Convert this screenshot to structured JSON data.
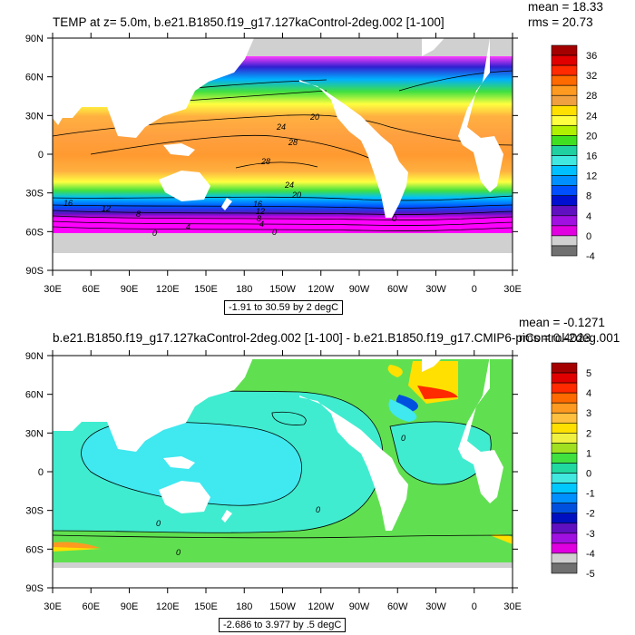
{
  "chart_data": [
    {
      "type": "heatmap",
      "title": "TEMP at z=   5.0m, b.e21.B1850.f19_g17.127kaControl-2deg.002 [1-100]",
      "stats": {
        "mean": "mean = 18.33",
        "rms": "rms = 20.73"
      },
      "range_label": "-1.91 to 30.59 by 2 degC",
      "x_ticks": [
        "30E",
        "60E",
        "90E",
        "120E",
        "150E",
        "180",
        "150W",
        "120W",
        "90W",
        "60W",
        "30W",
        "0",
        "30E"
      ],
      "y_ticks": [
        "90N",
        "60N",
        "30N",
        "0",
        "30S",
        "60S",
        "90S"
      ],
      "colorbar": {
        "labels": [
          "36",
          "32",
          "28",
          "24",
          "20",
          "16",
          "12",
          "8",
          "4",
          "0",
          "-4"
        ],
        "colors": [
          "#a50000",
          "#e00000",
          "#ff2a00",
          "#ff6a00",
          "#ff9a20",
          "#f0a040",
          "#ffe000",
          "#ffff40",
          "#b0f000",
          "#40e020",
          "#20d0a0",
          "#40e8e0",
          "#00c0ff",
          "#0090ff",
          "#0050ff",
          "#0010d0",
          "#6010c0",
          "#a010e0",
          "#e000e0",
          "#d0d0d0",
          "#707070"
        ]
      },
      "contour_labels": [
        "20",
        "24",
        "28",
        "28",
        "24",
        "20",
        "16",
        "12",
        "8",
        "4",
        "0",
        "16",
        "12",
        "8",
        "4",
        "0",
        "0"
      ]
    },
    {
      "type": "heatmap",
      "title": "b.e21.B1850.f19_g17.127kaControl-2deg.002 [1-100] - b.e21.B1850.f19_g17.CMIP6-piControl-2deg.001",
      "stats": {
        "mean": "mean = -0.1271",
        "rms": "rms = 0.4023"
      },
      "range_label": "-2.686 to 3.977 by .5 degC",
      "x_ticks": [
        "30E",
        "60E",
        "90E",
        "120E",
        "150E",
        "180",
        "150W",
        "120W",
        "90W",
        "60W",
        "30W",
        "0",
        "30E"
      ],
      "y_ticks": [
        "90N",
        "60N",
        "30N",
        "0",
        "30S",
        "60S",
        "90S"
      ],
      "colorbar": {
        "labels": [
          "5",
          "4",
          "3",
          "2",
          "1",
          "0",
          "-1",
          "-2",
          "-3",
          "-4",
          "-5"
        ],
        "colors": [
          "#a50000",
          "#e00000",
          "#ff2a00",
          "#ff6a00",
          "#ff9a20",
          "#ffc040",
          "#ffe000",
          "#f0f040",
          "#a0e020",
          "#40e040",
          "#20d8a0",
          "#40e8e0",
          "#00c8ff",
          "#0090ff",
          "#0050e0",
          "#0010c0",
          "#6010c0",
          "#a010e0",
          "#e000e0",
          "#d0d0d0",
          "#707070"
        ]
      },
      "contour_labels": [
        "0",
        "0",
        "0",
        "0",
        "0"
      ]
    }
  ]
}
